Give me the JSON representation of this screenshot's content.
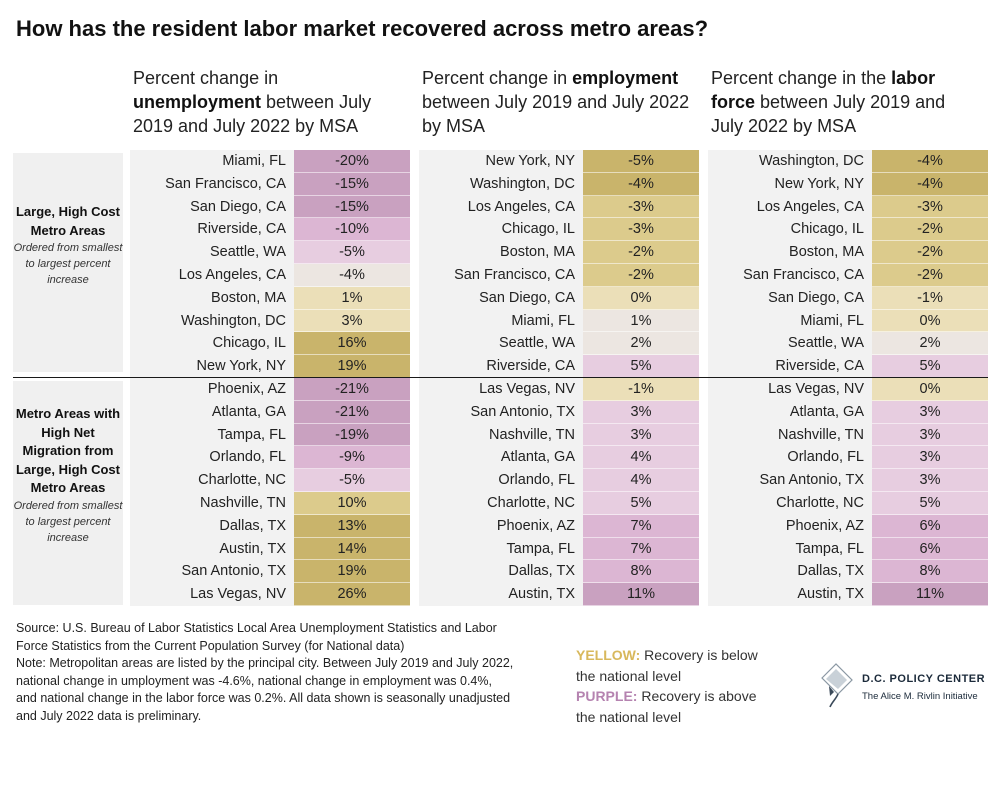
{
  "title": "How has the resident labor market recovered across metro areas?",
  "columns": [
    {
      "pre": "Percent change in ",
      "bold": "unemployment",
      "post": " between July 2019 and July 2022 by MSA"
    },
    {
      "pre": "Percent change in ",
      "bold": "employment",
      "post": " between July 2019 and July 2022 by MSA"
    },
    {
      "pre": "Percent change in the ",
      "bold": "labor force",
      "post": " between July 2019 and July 2022 by MSA"
    }
  ],
  "groups": [
    {
      "label": "Large, High Cost Metro Areas",
      "note": "Ordered from smallest to largest percent increase"
    },
    {
      "label": "Metro Areas with High Net Migration from Large, High Cost Metro Areas",
      "note": "Ordered from smallest to largest percent increase"
    }
  ],
  "chart_data": {
    "type": "table",
    "tables": [
      {
        "name": "unemployment",
        "groups": [
          {
            "rows": [
              {
                "city": "Miami, FL",
                "value": -20
              },
              {
                "city": "San Francisco, CA",
                "value": -15
              },
              {
                "city": "San Diego, CA",
                "value": -15
              },
              {
                "city": "Riverside, CA",
                "value": -10
              },
              {
                "city": "Seattle, WA",
                "value": -5
              },
              {
                "city": "Los Angeles, CA",
                "value": -4
              },
              {
                "city": "Boston, MA",
                "value": 1
              },
              {
                "city": "Washington, DC",
                "value": 3
              },
              {
                "city": "Chicago, IL",
                "value": 16
              },
              {
                "city": "New York, NY",
                "value": 19
              }
            ]
          },
          {
            "rows": [
              {
                "city": "Phoenix, AZ",
                "value": -21
              },
              {
                "city": "Atlanta, GA",
                "value": -21
              },
              {
                "city": "Tampa, FL",
                "value": -19
              },
              {
                "city": "Orlando, FL",
                "value": -9
              },
              {
                "city": "Charlotte, NC",
                "value": -5
              },
              {
                "city": "Nashville, TN",
                "value": 10
              },
              {
                "city": "Dallas, TX",
                "value": 13
              },
              {
                "city": "Austin, TX",
                "value": 14
              },
              {
                "city": "San Antonio, TX",
                "value": 19
              },
              {
                "city": "Las Vegas, NV",
                "value": 26
              }
            ]
          }
        ]
      },
      {
        "name": "employment",
        "groups": [
          {
            "rows": [
              {
                "city": "New York, NY",
                "value": -5
              },
              {
                "city": "Washington, DC",
                "value": -4
              },
              {
                "city": "Los Angeles, CA",
                "value": -3
              },
              {
                "city": "Chicago, IL",
                "value": -3
              },
              {
                "city": "Boston, MA",
                "value": -2
              },
              {
                "city": "San Francisco, CA",
                "value": -2
              },
              {
                "city": "San Diego, CA",
                "value": 0
              },
              {
                "city": "Miami, FL",
                "value": 1
              },
              {
                "city": "Seattle, WA",
                "value": 2
              },
              {
                "city": "Riverside, CA",
                "value": 5
              }
            ]
          },
          {
            "rows": [
              {
                "city": "Las Vegas, NV",
                "value": -1
              },
              {
                "city": "San Antonio, TX",
                "value": 3
              },
              {
                "city": "Nashville, TN",
                "value": 3
              },
              {
                "city": "Atlanta, GA",
                "value": 4
              },
              {
                "city": "Orlando, FL",
                "value": 4
              },
              {
                "city": "Charlotte, NC",
                "value": 5
              },
              {
                "city": "Phoenix, AZ",
                "value": 7
              },
              {
                "city": "Tampa, FL",
                "value": 7
              },
              {
                "city": "Dallas, TX",
                "value": 8
              },
              {
                "city": "Austin, TX",
                "value": 11
              }
            ]
          }
        ]
      },
      {
        "name": "labor force",
        "groups": [
          {
            "rows": [
              {
                "city": "Washington, DC",
                "value": -4
              },
              {
                "city": "New York, NY",
                "value": -4
              },
              {
                "city": "Los Angeles, CA",
                "value": -3
              },
              {
                "city": "Chicago, IL",
                "value": -2
              },
              {
                "city": "Boston, MA",
                "value": -2
              },
              {
                "city": "San Francisco, CA",
                "value": -2
              },
              {
                "city": "San Diego, CA",
                "value": -1
              },
              {
                "city": "Miami, FL",
                "value": 0
              },
              {
                "city": "Seattle, WA",
                "value": 2
              },
              {
                "city": "Riverside, CA",
                "value": 5
              }
            ]
          },
          {
            "rows": [
              {
                "city": "Las Vegas, NV",
                "value": 0
              },
              {
                "city": "Atlanta, GA",
                "value": 3
              },
              {
                "city": "Nashville, TN",
                "value": 3
              },
              {
                "city": "Orlando, FL",
                "value": 3
              },
              {
                "city": "San Antonio, TX",
                "value": 3
              },
              {
                "city": "Charlotte, NC",
                "value": 5
              },
              {
                "city": "Phoenix, AZ",
                "value": 6
              },
              {
                "city": "Tampa, FL",
                "value": 6
              },
              {
                "city": "Dallas, TX",
                "value": 8
              },
              {
                "city": "Austin, TX",
                "value": 11
              }
            ]
          }
        ]
      }
    ]
  },
  "colors": {
    "yellow_dark": "#c9b46b",
    "yellow_mid": "#dccb8c",
    "yellow_light": "#ebdfb8",
    "neutral": "#ece6e1",
    "purple_light": "#e7cde0",
    "purple_mid": "#dcb6d3",
    "purple_dark": "#c9a1c0",
    "legend_yellow": "#d8b85c",
    "legend_purple": "#b583b0"
  },
  "footer": {
    "source": "Source: U.S. Bureau of Labor Statistics Local Area Unemployment Statistics and Labor Force Statistics from the Current Population Survey (for National data)",
    "note": "Note: Metropolitan areas are listed by the principal city. Between July 2019 and July 2022, national change in umployment was -4.6%, national change in employment was 0.4%, and national change in the labor force was 0.2%. All data shown is seasonally unadjusted and July 2022 data is preliminary."
  },
  "legend": {
    "yellow_word": "YELLOW:",
    "yellow_text": " Recovery is below the national level",
    "purple_word": "PURPLE:",
    "purple_text": " Recovery is above the national level"
  },
  "logo": {
    "title": "D.C. POLICY CENTER",
    "subtitle": "The Alice M. Rivlin Initiative"
  }
}
